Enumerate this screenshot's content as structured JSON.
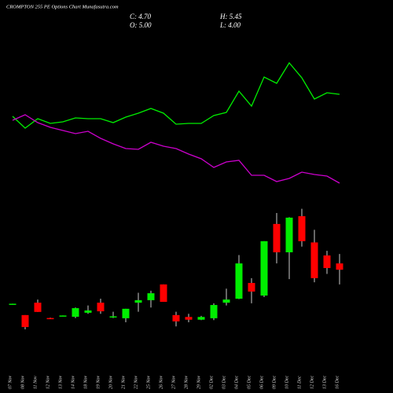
{
  "chart_data": {
    "type": "candlestick",
    "title": "CROMPTON 255 PE Options Chart Munafasutra.com",
    "ohlc_labels": [
      "C: 4.70",
      "H: 5.45",
      "O: 5.00",
      "L: 4.00"
    ],
    "categories": [
      "07 Nov",
      "08 Nov",
      "11 Nov",
      "12 Nov",
      "13 Nov",
      "14 Nov",
      "18 Nov",
      "19 Nov",
      "20 Nov",
      "21 Nov",
      "22 Nov",
      "25 Nov",
      "26 Nov",
      "27 Nov",
      "28 Nov",
      "29 Nov",
      "02 Dec",
      "03 Dec",
      "04 Dec",
      "05 Dec",
      "06 Dec",
      "09 Dec",
      "10 Dec",
      "11 Dec",
      "12 Dec",
      "13 Dec",
      "16 Dec"
    ],
    "open": [
      3.05,
      2.54,
      3.13,
      2.4,
      2.48,
      2.46,
      2.65,
      3.13,
      2.46,
      2.39,
      3.13,
      3.25,
      4.0,
      2.54,
      2.45,
      2.32,
      2.39,
      3.13,
      3.32,
      4.07,
      3.47,
      6.88,
      5.53,
      7.25,
      6.0,
      5.38,
      5.0
    ],
    "high": [
      3.08,
      2.54,
      3.28,
      2.42,
      2.52,
      2.9,
      3.0,
      3.32,
      2.7,
      2.84,
      3.6,
      3.7,
      4.0,
      2.7,
      2.6,
      2.5,
      3.1,
      3.8,
      5.4,
      4.3,
      6.06,
      7.4,
      7.2,
      7.6,
      6.6,
      5.6,
      5.45
    ],
    "low": [
      3.05,
      1.86,
      2.69,
      2.36,
      2.48,
      2.4,
      2.6,
      2.6,
      2.4,
      2.2,
      2.7,
      2.9,
      3.17,
      2.0,
      2.2,
      2.3,
      2.3,
      3.0,
      3.3,
      3.1,
      3.4,
      5.0,
      4.25,
      5.8,
      4.1,
      4.5,
      4.0
    ],
    "close": [
      3.08,
      1.97,
      2.69,
      2.38,
      2.52,
      2.87,
      2.76,
      2.72,
      2.48,
      2.84,
      3.25,
      3.58,
      3.17,
      2.24,
      2.32,
      2.45,
      3.02,
      3.28,
      5.0,
      3.66,
      6.06,
      5.53,
      7.18,
      6.06,
      4.3,
      4.78,
      4.7
    ],
    "up_color": "#00ee00",
    "down_color": "#ff0000",
    "ylim": [
      1,
      8
    ],
    "y2lim": [
      0,
      150
    ],
    "series": [
      {
        "color": "#00ee00",
        "axis": "y2",
        "values": [
          76,
          68.5,
          74.5,
          71.5,
          72.5,
          75,
          74.5,
          74.5,
          72,
          75.5,
          78,
          81,
          78,
          71,
          71.5,
          71.5,
          76.5,
          78.5,
          92,
          82.5,
          101,
          97,
          110,
          100.5,
          87,
          91,
          90
        ]
      },
      {
        "color": "#cc00cc",
        "axis": "y2",
        "values": [
          73.5,
          77,
          72,
          69,
          67,
          65,
          66.5,
          62,
          58.5,
          55.5,
          55,
          59.5,
          57,
          55.5,
          52,
          49,
          43.5,
          47,
          48,
          38.5,
          38.5,
          34.5,
          36.5,
          40.5,
          39,
          38,
          33.5
        ]
      }
    ]
  }
}
